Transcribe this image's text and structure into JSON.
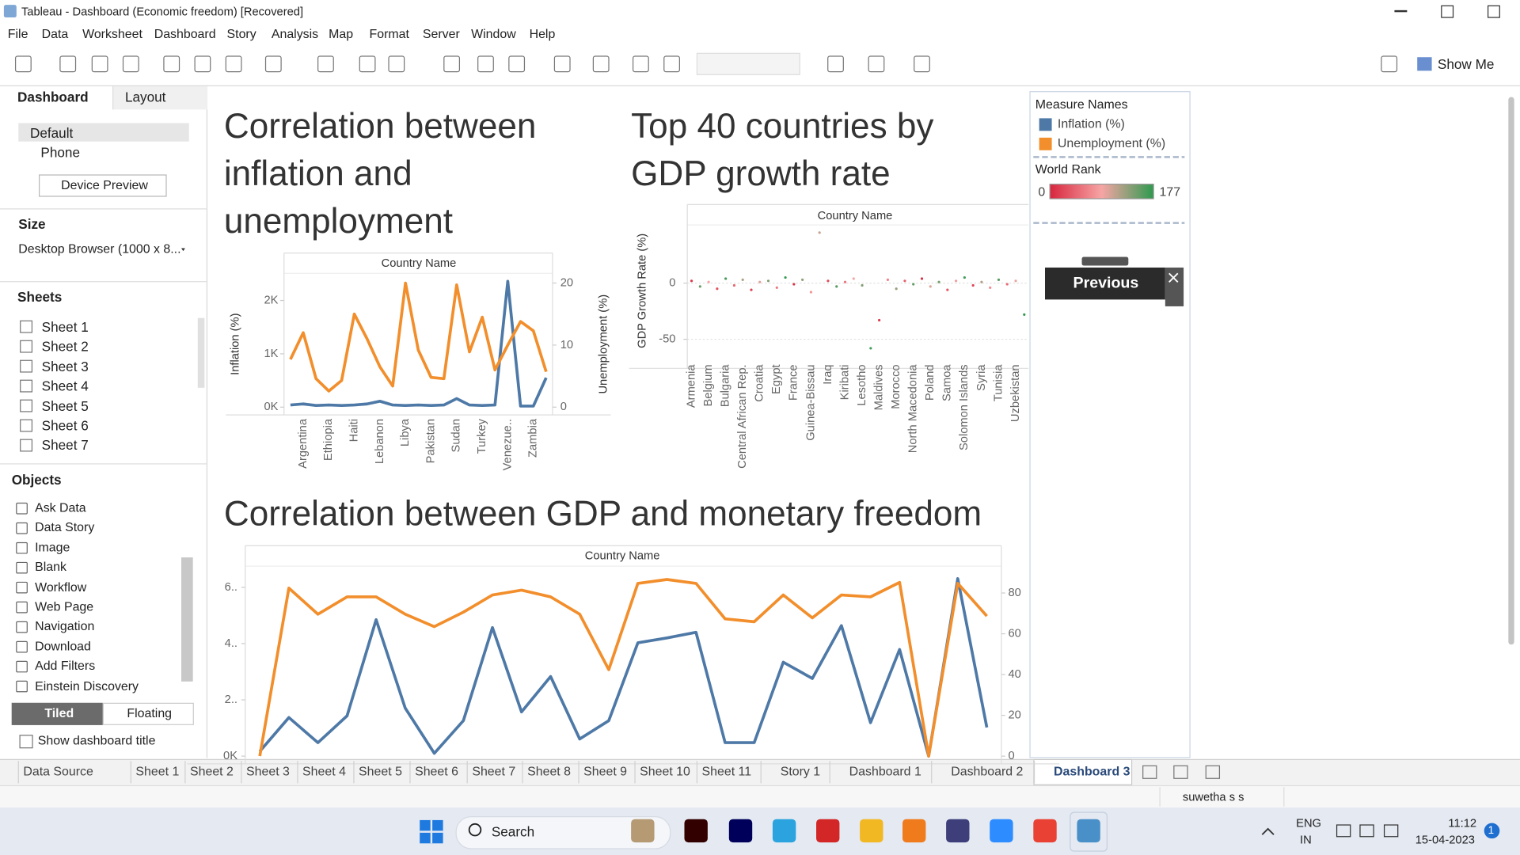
{
  "window": {
    "title": "Tableau - Dashboard (Economic freedom) [Recovered]"
  },
  "menu": [
    "File",
    "Data",
    "Worksheet",
    "Dashboard",
    "Story",
    "Analysis",
    "Map",
    "Format",
    "Server",
    "Window",
    "Help"
  ],
  "toolbar": {
    "show_me": "Show Me"
  },
  "left_panel": {
    "tabs": [
      "Dashboard",
      "Layout"
    ],
    "devices": [
      "Default",
      "Phone"
    ],
    "device_preview": "Device Preview",
    "size_heading": "Size",
    "size_value": "Desktop Browser (1000 x 8...",
    "sheets_heading": "Sheets",
    "sheets": [
      "Sheet 1",
      "Sheet 2",
      "Sheet 3",
      "Sheet 4",
      "Sheet 5",
      "Sheet 6",
      "Sheet 7"
    ],
    "objects_heading": "Objects",
    "objects": [
      "Ask Data",
      "Data Story",
      "Image",
      "Blank",
      "Workflow",
      "Web Page",
      "Navigation",
      "Download",
      "Add Filters",
      "Einstein Discovery"
    ],
    "layout_modes": [
      "Tiled",
      "Floating"
    ],
    "show_title": "Show dashboard title"
  },
  "dashboard": {
    "charts": [
      {
        "type": "line",
        "title": "Correlation between inflation and unemployment",
        "header": "Country Name",
        "y_label": "Inflation (%)",
        "y2_label": "Unemployment (%)",
        "categories": [
          null,
          "Argentina",
          null,
          "Ethiopia",
          null,
          "Haiti",
          null,
          "Lebanon",
          null,
          "Libya",
          null,
          "Pakistan",
          null,
          "Sudan",
          null,
          "Turkey",
          null,
          "Venezue..",
          null,
          "Zambia",
          null
        ],
        "series": [
          {
            "name": "Inflation (%)",
            "color": "#4e79a7",
            "values": [
              40,
              60,
              30,
              40,
              30,
              40,
              60,
              110,
              40,
              30,
              40,
              30,
              40,
              160,
              40,
              30,
              40,
              2360,
              20,
              20,
              550
            ]
          },
          {
            "name": "Unemployment (%)",
            "color": "#f28e2b",
            "axis": "y2",
            "values": [
              7.7,
              12,
              4.6,
              2.6,
              4.3,
              15,
              11,
              6.5,
              3.4,
              20,
              9.2,
              4.8,
              4.6,
              19.7,
              8.9,
              14.5,
              6,
              10,
              13.8,
              12.3,
              5.7
            ]
          }
        ],
        "ylim": [
          0,
          2490
        ],
        "yticks": [
          {
            "value": 0,
            "label": "0K"
          },
          {
            "value": 1000,
            "label": "1K"
          },
          {
            "value": 2000,
            "label": "2K"
          }
        ],
        "y2lim": [
          0,
          21.4
        ],
        "y2ticks": [
          0,
          10,
          20
        ]
      },
      {
        "type": "scatter",
        "title": "Top 40 countries by GDP growth rate",
        "header": "Country Name",
        "y_label": "GDP Growth Rate (%)",
        "categories": [
          "Armenia",
          null,
          "Belgium",
          null,
          "Bulgaria",
          null,
          "Central African Rep.",
          null,
          "Croatia",
          null,
          "Egypt",
          null,
          "France",
          null,
          "Guinea-Bissau",
          null,
          "Iraq",
          null,
          "Kiribati",
          null,
          "Lesotho",
          null,
          "Maldives",
          null,
          "Morocco",
          null,
          "North Macedonia",
          null,
          "Poland",
          null,
          "Samoa",
          null,
          "Solomon Islands",
          null,
          "Syria",
          null,
          "Tunisia",
          null,
          "Uzbekistan",
          null
        ],
        "values": [
          2,
          -3,
          1,
          -5,
          4,
          -2,
          3,
          -6,
          1,
          2,
          -4,
          5,
          -1,
          3,
          -8,
          45,
          2,
          -3,
          1,
          4,
          -2,
          -58,
          -33,
          3,
          -5,
          2,
          -1,
          4,
          -3,
          1,
          -6,
          2,
          5,
          -2,
          1,
          -4,
          3,
          -1,
          2,
          -28
        ],
        "ranks": [
          12,
          150,
          88,
          30,
          165,
          45,
          120,
          20,
          99,
          140,
          60,
          175,
          8,
          133,
          77,
          110,
          25,
          160,
          55,
          90,
          140,
          170,
          15,
          65,
          130,
          40,
          155,
          5,
          100,
          145,
          35,
          80,
          168,
          22,
          118,
          70,
          158,
          48,
          95,
          175
        ],
        "ylim": [
          -69,
          51
        ],
        "yticks": [
          -50,
          0
        ]
      },
      {
        "type": "line",
        "title": "Correlation between GDP and monetary freedom",
        "header": "Country Name",
        "categories": [
          null,
          null,
          null,
          null,
          null,
          null,
          null,
          null,
          null,
          null,
          null,
          null,
          null,
          null,
          null,
          null,
          null,
          null,
          null,
          null,
          null,
          null,
          null,
          null,
          null,
          null
        ],
        "series": [
          {
            "color": "#4e79a7",
            "values": [
              170,
              1370,
              480,
              1430,
              4850,
              1710,
              100,
              1260,
              4570,
              1570,
              2830,
              610,
              1260,
              4030,
              4200,
              4400,
              480,
              480,
              3340,
              2760,
              4640,
              1190,
              3790,
              0,
              6310,
              1020
            ]
          },
          {
            "color": "#f28e2b",
            "axis": "y2",
            "values": [
              0,
              82.4,
              69.6,
              78.1,
              78.1,
              69.6,
              63.5,
              70.6,
              79,
              81.4,
              78.1,
              69.6,
              42.4,
              84.7,
              86.6,
              84.7,
              67.3,
              65.9,
              79,
              67.8,
              79,
              78.1,
              85.2,
              0,
              84.7,
              68.7
            ]
          }
        ],
        "ylim": [
          0,
          6720
        ],
        "yticks": [
          {
            "value": 0,
            "label": "0K"
          },
          {
            "value": 2000,
            "label": "2.."
          },
          {
            "value": 4000,
            "label": "4.."
          },
          {
            "value": 6000,
            "label": "6.."
          }
        ],
        "y2lim": [
          0,
          92.7
        ],
        "y2ticks": [
          0,
          20,
          40,
          60,
          80
        ]
      }
    ],
    "legend": {
      "title": "Measure Names",
      "color_title": "World Rank",
      "color_min": 0,
      "color_max": 177,
      "colors": [
        "#d7263d",
        "#f6a5a5",
        "#2e9a4e"
      ]
    },
    "button": "Previous"
  },
  "tabs": [
    "Data Source",
    "Sheet 1",
    "Sheet 2",
    "Sheet 3",
    "Sheet 4",
    "Sheet 5",
    "Sheet 6",
    "Sheet 7",
    "Sheet 8",
    "Sheet 9",
    "Sheet 10",
    "Sheet 11",
    "Story 1",
    "Dashboard 1",
    "Dashboard 2",
    "Dashboard 3"
  ],
  "status": {
    "user": "suwetha s s"
  },
  "taskbar": {
    "search": "Search",
    "language": [
      "ENG",
      "IN"
    ],
    "time": "11:12",
    "date": "15-04-2023",
    "notifications": 1
  }
}
